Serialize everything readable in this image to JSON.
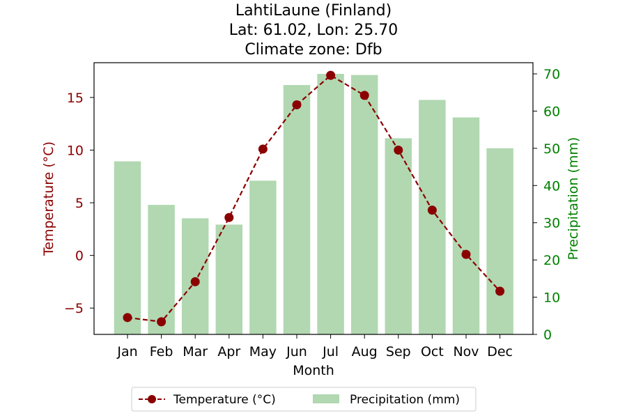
{
  "chart_data": {
    "type": "bar+line",
    "title_lines": [
      "LahtiLaune (Finland)",
      "Lat: 61.02, Lon: 25.70",
      "Climate zone: Dfb"
    ],
    "xlabel": "Month",
    "ylabel_left": "Temperature (°C)",
    "ylabel_right": "Precipitation (mm)",
    "categories": [
      "Jan",
      "Feb",
      "Mar",
      "Apr",
      "May",
      "Jun",
      "Jul",
      "Aug",
      "Sep",
      "Oct",
      "Nov",
      "Dec"
    ],
    "temperature": [
      -5.9,
      -6.3,
      -2.5,
      3.6,
      10.1,
      14.3,
      17.1,
      15.2,
      10.0,
      4.3,
      0.1,
      -3.4
    ],
    "precipitation": [
      46.5,
      34.8,
      31.2,
      29.5,
      41.3,
      67.0,
      70.0,
      69.7,
      52.7,
      63.0,
      58.3,
      50.0
    ],
    "ylim_left": [
      -7.5,
      18.3
    ],
    "ylim_right": [
      0,
      73
    ],
    "yticks_left": [
      -5,
      0,
      5,
      10,
      15
    ],
    "yticks_right": [
      0,
      10,
      20,
      30,
      40,
      50,
      60,
      70
    ],
    "legend": [
      "Temperature (°C)",
      "Precipitation (mm)"
    ],
    "legend_position": "bottom-center",
    "colors": {
      "temperature": "#8b0000",
      "precipitation": "#a9d4a9",
      "left_axis": "#8b0000",
      "right_axis": "#008000"
    }
  }
}
